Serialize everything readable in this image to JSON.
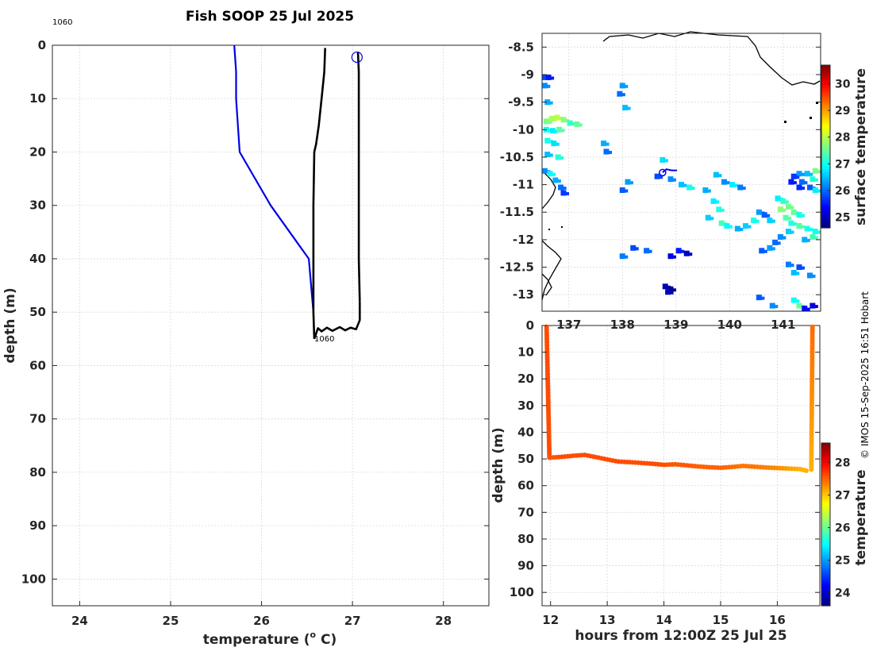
{
  "title": "Fish SOOP 25 Jul 2025",
  "credit": "© IMOS 15-Sep-2025 16:51 Hobart",
  "chart_data": [
    {
      "type": "line",
      "name": "profile",
      "xlabel": "temperature (",
      "xlabel_sup": "o",
      "xlabel_unit": " C)",
      "ylabel": "depth (m)",
      "xlim": [
        23.7,
        28.5
      ],
      "ylim": [
        0,
        105
      ],
      "xticks": [
        "24",
        "25",
        "26",
        "27",
        "28"
      ],
      "yticks": [
        "0",
        "10",
        "20",
        "30",
        "40",
        "50",
        "60",
        "70",
        "80",
        "90",
        "100"
      ],
      "annotations": [
        {
          "text": "1060",
          "x": 23.7,
          "y": -2.2
        },
        {
          "text": "1060",
          "x": 26.58,
          "y": 55.5
        }
      ],
      "marker": {
        "x": 27.05,
        "y": 1.2
      },
      "series": [
        {
          "name": "climatology",
          "color": "#0000e6",
          "x": [
            25.7,
            25.72,
            25.72,
            25.76,
            26.1,
            26.52,
            26.57
          ],
          "y": [
            0,
            5,
            10,
            20,
            30,
            40,
            50
          ]
        },
        {
          "name": "downcast",
          "color": "#000000",
          "x": [
            26.7,
            26.69,
            26.66,
            26.63,
            26.6,
            26.58,
            26.57,
            26.57,
            26.57,
            26.58
          ],
          "y": [
            0.5,
            5,
            10,
            15,
            18.5,
            20,
            30,
            40,
            50,
            55
          ]
        },
        {
          "name": "bottom",
          "color": "#000000",
          "x": [
            26.58,
            26.62,
            26.66,
            26.72,
            26.78,
            26.86,
            26.92,
            26.98,
            27.04,
            27.08,
            27.08
          ],
          "y": [
            55,
            53,
            53.6,
            52.9,
            53.5,
            52.8,
            53.4,
            52.9,
            53.2,
            51.5,
            48
          ]
        },
        {
          "name": "upcast",
          "color": "#000000",
          "x": [
            27.08,
            27.07,
            27.07,
            27.07,
            27.06
          ],
          "y": [
            48,
            40,
            20,
            5,
            1.2
          ]
        }
      ]
    },
    {
      "type": "heatmap",
      "name": "map",
      "colorbar_label": "surface temperature",
      "xlim": [
        136.5,
        141.7
      ],
      "ylim": [
        -13.3,
        -8.25
      ],
      "xticks": [
        "137",
        "138",
        "139",
        "140",
        "141"
      ],
      "yticks": [
        "-8.5",
        "-9",
        "-9.5",
        "-10",
        "-10.5",
        "-11",
        "-11.5",
        "-12",
        "-12.5",
        "-13"
      ],
      "clim": [
        24.6,
        30.7
      ],
      "cticks": [
        "25",
        "26",
        "27",
        "28",
        "29",
        "30"
      ],
      "track": {
        "lon": [
          138.75,
          138.82,
          138.92,
          139.02
        ],
        "lat": [
          -10.78,
          -10.72,
          -10.74,
          -10.74
        ]
      },
      "pixels": [
        [
          136.55,
          -9.05,
          25.8
        ],
        [
          136.62,
          -9.05,
          25.5
        ],
        [
          136.55,
          -9.2,
          26.2
        ],
        [
          136.6,
          -9.5,
          26.4
        ],
        [
          136.58,
          -9.85,
          27.6
        ],
        [
          136.68,
          -9.8,
          27.9
        ],
        [
          136.78,
          -9.78,
          28.0
        ],
        [
          136.9,
          -9.82,
          27.7
        ],
        [
          137.02,
          -9.88,
          27.2
        ],
        [
          137.15,
          -9.9,
          27.5
        ],
        [
          136.58,
          -10.0,
          27.0
        ],
        [
          136.7,
          -10.02,
          26.8
        ],
        [
          136.82,
          -10.0,
          27.4
        ],
        [
          136.6,
          -10.2,
          27.0
        ],
        [
          136.72,
          -10.25,
          26.7
        ],
        [
          136.6,
          -10.45,
          26.5
        ],
        [
          136.55,
          -10.75,
          26.2
        ],
        [
          136.65,
          -10.8,
          26.9
        ],
        [
          136.75,
          -10.92,
          26.4
        ],
        [
          136.85,
          -11.05,
          26.0
        ],
        [
          136.9,
          -11.15,
          25.7
        ],
        [
          136.8,
          -10.5,
          27.1
        ],
        [
          137.65,
          -10.25,
          26.4
        ],
        [
          137.7,
          -10.4,
          26.0
        ],
        [
          138.0,
          -9.2,
          26.3
        ],
        [
          137.95,
          -9.35,
          26.0
        ],
        [
          138.05,
          -9.6,
          26.5
        ],
        [
          138.75,
          -10.55,
          26.7
        ],
        [
          138.65,
          -10.85,
          25.8
        ],
        [
          138.9,
          -10.9,
          26.2
        ],
        [
          139.1,
          -11.0,
          26.5
        ],
        [
          139.25,
          -11.05,
          27.0
        ],
        [
          138.0,
          -11.1,
          25.9
        ],
        [
          138.1,
          -10.95,
          26.3
        ],
        [
          139.05,
          -12.2,
          25.5
        ],
        [
          139.2,
          -12.25,
          25.0
        ],
        [
          138.9,
          -12.3,
          25.2
        ],
        [
          138.45,
          -12.2,
          26.0
        ],
        [
          138.2,
          -12.15,
          25.8
        ],
        [
          138.0,
          -12.3,
          26.1
        ],
        [
          139.55,
          -11.1,
          26.4
        ],
        [
          139.7,
          -11.3,
          26.8
        ],
        [
          139.8,
          -11.45,
          27.1
        ],
        [
          139.6,
          -11.6,
          26.6
        ],
        [
          139.85,
          -11.7,
          27.3
        ],
        [
          139.95,
          -11.75,
          26.9
        ],
        [
          140.15,
          -11.8,
          26.4
        ],
        [
          140.3,
          -11.75,
          26.6
        ],
        [
          140.45,
          -11.65,
          27.0
        ],
        [
          140.55,
          -11.5,
          26.3
        ],
        [
          140.65,
          -11.55,
          25.9
        ],
        [
          140.75,
          -11.65,
          26.6
        ],
        [
          139.75,
          -10.82,
          26.5
        ],
        [
          139.9,
          -10.95,
          26.2
        ],
        [
          140.05,
          -11.0,
          26.8
        ],
        [
          140.2,
          -11.05,
          26.1
        ],
        [
          138.8,
          -12.85,
          24.9
        ],
        [
          138.9,
          -12.9,
          24.7
        ],
        [
          138.85,
          -12.95,
          25.0
        ],
        [
          140.9,
          -11.25,
          26.8
        ],
        [
          141.0,
          -11.3,
          27.2
        ],
        [
          141.1,
          -11.4,
          27.6
        ],
        [
          141.2,
          -11.5,
          27.5
        ],
        [
          141.3,
          -11.55,
          27.0
        ],
        [
          140.95,
          -11.45,
          27.7
        ],
        [
          141.05,
          -11.6,
          27.4
        ],
        [
          141.15,
          -11.7,
          27.1
        ],
        [
          141.3,
          -11.75,
          27.4
        ],
        [
          141.45,
          -11.8,
          27.0
        ],
        [
          141.1,
          -11.85,
          26.6
        ],
        [
          140.95,
          -11.95,
          26.2
        ],
        [
          140.85,
          -12.05,
          26.0
        ],
        [
          140.75,
          -12.15,
          26.3
        ],
        [
          140.6,
          -12.2,
          25.9
        ],
        [
          141.55,
          -11.95,
          27.3
        ],
        [
          141.6,
          -11.85,
          27.0
        ],
        [
          141.4,
          -12.0,
          26.4
        ],
        [
          141.6,
          -10.75,
          27.6
        ],
        [
          141.55,
          -10.9,
          27.1
        ],
        [
          141.45,
          -10.8,
          26.5
        ],
        [
          141.35,
          -10.95,
          26.0
        ],
        [
          141.3,
          -11.05,
          25.6
        ],
        [
          141.5,
          -11.05,
          25.9
        ],
        [
          141.6,
          -11.1,
          26.8
        ],
        [
          141.3,
          -10.8,
          26.3
        ],
        [
          141.2,
          -10.85,
          25.7
        ],
        [
          141.15,
          -10.95,
          25.5
        ],
        [
          141.1,
          -12.45,
          26.1
        ],
        [
          141.2,
          -12.6,
          26.5
        ],
        [
          141.3,
          -12.5,
          25.8
        ],
        [
          141.5,
          -12.65,
          26.2
        ],
        [
          140.55,
          -13.05,
          25.9
        ],
        [
          141.2,
          -13.1,
          26.9
        ],
        [
          141.3,
          -13.2,
          27.5
        ],
        [
          141.4,
          -13.25,
          25.4
        ],
        [
          141.55,
          -13.2,
          25.2
        ],
        [
          140.8,
          -13.2,
          26.2
        ]
      ]
    },
    {
      "type": "scatter",
      "name": "section",
      "xlabel": "hours from 12:00Z 25 Jul 25",
      "ylabel": "depth (m)",
      "colorbar_label": "temperature",
      "xlim": [
        11.85,
        16.75
      ],
      "ylim": [
        0,
        105
      ],
      "xticks": [
        "12",
        "13",
        "14",
        "15",
        "16"
      ],
      "yticks": [
        "0",
        "10",
        "20",
        "30",
        "40",
        "50",
        "60",
        "70",
        "80",
        "90",
        "100"
      ],
      "clim": [
        23.6,
        28.6
      ],
      "cticks": [
        "24",
        "25",
        "26",
        "27",
        "28"
      ],
      "down": {
        "t0": 11.93,
        "t1": 11.98,
        "d0": 0.5,
        "d1": 49.5,
        "c": 27.6
      },
      "bottom": {
        "t": [
          12.0,
          12.2,
          12.4,
          12.6,
          12.8,
          13.0,
          13.2,
          13.4,
          13.6,
          13.8,
          14.0,
          14.2,
          14.4,
          14.6,
          14.8,
          15.0,
          15.2,
          15.4,
          15.6,
          15.8,
          16.0,
          16.2,
          16.4,
          16.55
        ],
        "d": [
          49.5,
          49.2,
          48.8,
          48.5,
          49.3,
          50.2,
          51.0,
          51.2,
          51.5,
          51.8,
          52.2,
          52.0,
          52.4,
          52.8,
          53.1,
          53.3,
          53.0,
          52.6,
          52.9,
          53.2,
          53.4,
          53.6,
          53.8,
          54.6
        ],
        "c": [
          27.55,
          27.6,
          27.6,
          27.6,
          27.6,
          27.6,
          27.6,
          27.6,
          27.6,
          27.6,
          27.6,
          27.55,
          27.55,
          27.5,
          27.5,
          27.5,
          27.45,
          27.4,
          27.4,
          27.35,
          27.3,
          27.2,
          27.1,
          27.1
        ]
      },
      "up": {
        "t0": 16.6,
        "t1": 16.62,
        "d0": 54.0,
        "d1": 0.5,
        "c0": 27.1,
        "c1": 27.45
      }
    }
  ]
}
